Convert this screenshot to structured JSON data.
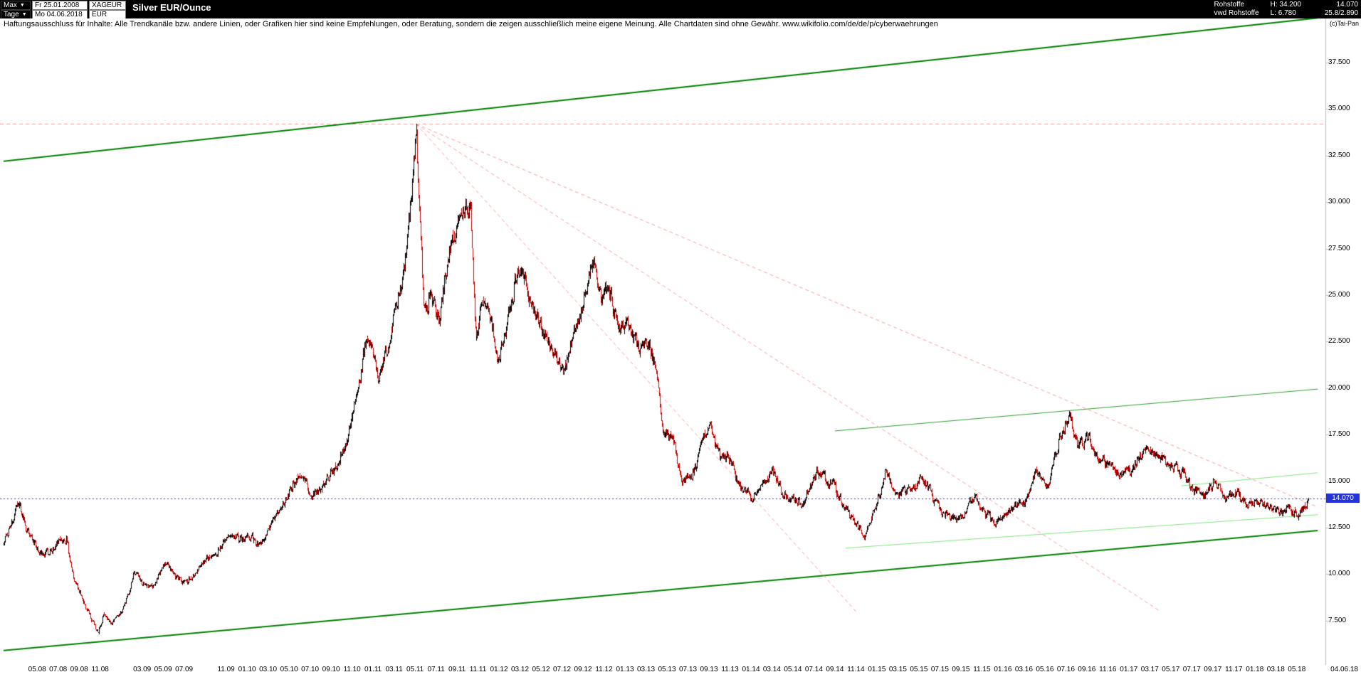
{
  "toolbar": {
    "range_label": "Max",
    "period_label": "Tage",
    "start_date": "Fr 25.01.2008",
    "end_date": "Mo 04.06.2018",
    "symbol": "XAGEUR",
    "currency": "EUR",
    "title": "Silver EUR/Ounce",
    "category": "Rohstoffe",
    "source": "vwd Rohstoffe",
    "high_label": "H: 34.200",
    "low_label": "L: 6.780",
    "last_value": "14.070",
    "change_value": "25.8/2.890"
  },
  "chart": {
    "disclaimer": "Haftungsausschluss für Inhalte: Alle Trendkanäle bzw. andere Linien, oder Grafiken hier sind keine Empfehlungen, oder Beratung, sondern die zeigen ausschließlich meine eigene Meinung. Alle Chartdaten sind ohne Gewähr.  www.wikifolio.com/de/de/p/cyberwaehrungen",
    "copyright": "(c)Tai-Pan",
    "last_price_label": "14.070",
    "colors": {
      "up": "#000000",
      "down": "#cc0000",
      "channel_green": "#008000",
      "mid_green": "#2e9e2e",
      "bright_green": "#7fe57f",
      "pink_dashed": "#ff9e9e",
      "high_line_red": "#ff9e9e",
      "last_line_blue": "#2a2af0",
      "tag_bg": "#2233dd",
      "axis_line": "#bbbbbb"
    }
  },
  "chart_data": {
    "type": "candlestick",
    "title": "Silver EUR/Ounce",
    "x_unit": "months since 2008-01",
    "x_range": [
      0.8,
      125.1
    ],
    "y_range_visible": [
      4.8,
      39.9
    ],
    "high": 34.2,
    "low": 6.78,
    "last": 14.07,
    "y_ticks": [
      "37.500",
      "35.000",
      "32.500",
      "30.000",
      "27.500",
      "25.000",
      "22.500",
      "20.000",
      "17.500",
      "15.000",
      "12.500",
      "10.000",
      "7.500"
    ],
    "x_ticks": [
      "05.08",
      "07.08",
      "09.08",
      "11.08",
      "03.09",
      "05.09",
      "07.09",
      "11.09",
      "01.10",
      "03.10",
      "05.10",
      "07.10",
      "09.10",
      "11.10",
      "01.11",
      "03.11",
      "05.11",
      "07.11",
      "09.11",
      "11.11",
      "01.12",
      "03.12",
      "05.12",
      "07.12",
      "09.12",
      "11.12",
      "01.13",
      "03.13",
      "05.13",
      "07.13",
      "09.13",
      "11.13",
      "01.14",
      "03.14",
      "05.14",
      "07.14",
      "09.14",
      "11.14",
      "01.15",
      "03.15",
      "05.15",
      "07.15",
      "09.15",
      "11.15",
      "01.16",
      "03.16",
      "05.16",
      "07.16",
      "09.16",
      "11.16",
      "01.17",
      "03.17",
      "05.17",
      "07.17",
      "09.17",
      "11.17",
      "01.18",
      "03.18",
      "05.18",
      "04.06.18"
    ],
    "anchors": [
      [
        0.8,
        11.6
      ],
      [
        1.5,
        12.6
      ],
      [
        2.2,
        13.9
      ],
      [
        3.0,
        12.5
      ],
      [
        4.0,
        11.3
      ],
      [
        5.0,
        11.1
      ],
      [
        6.0,
        11.7
      ],
      [
        6.8,
        11.9
      ],
      [
        7.5,
        9.6
      ],
      [
        8.3,
        8.7
      ],
      [
        9.2,
        7.5
      ],
      [
        9.8,
        6.9
      ],
      [
        10.3,
        7.9
      ],
      [
        11.0,
        7.3
      ],
      [
        11.8,
        7.8
      ],
      [
        12.5,
        8.6
      ],
      [
        13.3,
        10.1
      ],
      [
        14.0,
        9.5
      ],
      [
        15.0,
        9.2
      ],
      [
        16.2,
        10.7
      ],
      [
        17.0,
        9.9
      ],
      [
        18.3,
        9.5
      ],
      [
        19.2,
        10.2
      ],
      [
        20.0,
        10.9
      ],
      [
        21.0,
        11.0
      ],
      [
        22.3,
        12.2
      ],
      [
        23.3,
        11.8
      ],
      [
        24.3,
        12.1
      ],
      [
        25.3,
        11.5
      ],
      [
        26.3,
        12.6
      ],
      [
        27.3,
        13.7
      ],
      [
        28.3,
        14.7
      ],
      [
        29.2,
        15.5
      ],
      [
        30.0,
        14.3
      ],
      [
        31.0,
        14.5
      ],
      [
        31.8,
        15.3
      ],
      [
        32.6,
        16.0
      ],
      [
        33.5,
        17.1
      ],
      [
        34.5,
        19.7
      ],
      [
        35.3,
        22.6
      ],
      [
        36.0,
        21.9
      ],
      [
        36.6,
        20.3
      ],
      [
        37.5,
        22.6
      ],
      [
        38.3,
        24.4
      ],
      [
        39.0,
        26.4
      ],
      [
        39.6,
        29.8
      ],
      [
        40.1,
        33.8
      ],
      [
        40.45,
        29.0
      ],
      [
        40.8,
        24.6
      ],
      [
        41.5,
        24.9
      ],
      [
        42.3,
        23.5
      ],
      [
        43.2,
        27.3
      ],
      [
        44.0,
        28.4
      ],
      [
        44.7,
        30.0
      ],
      [
        45.3,
        29.6
      ],
      [
        45.8,
        22.8
      ],
      [
        46.5,
        24.5
      ],
      [
        47.2,
        23.8
      ],
      [
        48.0,
        21.3
      ],
      [
        48.8,
        23.5
      ],
      [
        49.5,
        25.9
      ],
      [
        50.2,
        26.4
      ],
      [
        51.0,
        24.5
      ],
      [
        52.0,
        23.3
      ],
      [
        53.0,
        21.9
      ],
      [
        54.2,
        21.2
      ],
      [
        55.0,
        22.5
      ],
      [
        56.0,
        24.7
      ],
      [
        57.0,
        26.9
      ],
      [
        57.7,
        24.8
      ],
      [
        58.4,
        25.6
      ],
      [
        59.3,
        23.1
      ],
      [
        60.3,
        23.5
      ],
      [
        61.3,
        22.1
      ],
      [
        62.3,
        22.4
      ],
      [
        63.2,
        20.0
      ],
      [
        63.6,
        17.8
      ],
      [
        64.5,
        17.3
      ],
      [
        65.4,
        15.1
      ],
      [
        66.4,
        15.2
      ],
      [
        67.3,
        16.9
      ],
      [
        68.0,
        18.2
      ],
      [
        69.0,
        16.3
      ],
      [
        70.0,
        16.2
      ],
      [
        71.0,
        14.6
      ],
      [
        72.0,
        14.2
      ],
      [
        73.0,
        14.6
      ],
      [
        74.0,
        15.6
      ],
      [
        75.0,
        14.4
      ],
      [
        76.0,
        14.0
      ],
      [
        77.0,
        13.9
      ],
      [
        78.2,
        15.4
      ],
      [
        79.0,
        15.1
      ],
      [
        80.0,
        14.6
      ],
      [
        81.0,
        13.5
      ],
      [
        82.0,
        12.8
      ],
      [
        82.8,
        11.9
      ],
      [
        83.5,
        13.0
      ],
      [
        84.3,
        14.4
      ],
      [
        84.8,
        15.4
      ],
      [
        85.5,
        14.6
      ],
      [
        86.5,
        14.4
      ],
      [
        87.5,
        14.6
      ],
      [
        88.3,
        15.3
      ],
      [
        89.3,
        14.1
      ],
      [
        90.3,
        13.3
      ],
      [
        91.3,
        13.0
      ],
      [
        92.3,
        13.1
      ],
      [
        93.2,
        14.1
      ],
      [
        94.2,
        13.4
      ],
      [
        95.2,
        12.7
      ],
      [
        96.2,
        13.2
      ],
      [
        97.2,
        13.7
      ],
      [
        98.2,
        14.0
      ],
      [
        99.2,
        15.5
      ],
      [
        100.2,
        14.6
      ],
      [
        101.2,
        16.9
      ],
      [
        102.4,
        18.6
      ],
      [
        103.2,
        17.0
      ],
      [
        104.2,
        17.2
      ],
      [
        105.2,
        16.1
      ],
      [
        106.0,
        15.8
      ],
      [
        106.8,
        15.3
      ],
      [
        108.0,
        15.5
      ],
      [
        109.0,
        16.3
      ],
      [
        110.0,
        16.8
      ],
      [
        111.0,
        16.3
      ],
      [
        112.0,
        15.8
      ],
      [
        113.2,
        15.4
      ],
      [
        114.2,
        14.5
      ],
      [
        115.2,
        14.3
      ],
      [
        116.2,
        14.9
      ],
      [
        117.2,
        14.1
      ],
      [
        118.2,
        14.5
      ],
      [
        119.2,
        13.7
      ],
      [
        120.2,
        14.0
      ],
      [
        121.2,
        13.6
      ],
      [
        122.2,
        13.3
      ],
      [
        123.2,
        13.5
      ],
      [
        124.2,
        13.2
      ],
      [
        125.1,
        14.07
      ]
    ],
    "trend_lines": [
      {
        "name": "upper-channel",
        "p1": [
          0.8,
          32.2
        ],
        "p2": [
          126,
          39.9
        ],
        "color_key": "channel_green",
        "width": 2,
        "dash": []
      },
      {
        "name": "lower-channel",
        "p1": [
          0.8,
          5.9
        ],
        "p2": [
          126,
          12.35
        ],
        "color_key": "channel_green",
        "width": 2,
        "dash": []
      },
      {
        "name": "mid-resistance",
        "p1": [
          80,
          17.7
        ],
        "p2": [
          126,
          19.95
        ],
        "color_key": "mid_green",
        "width": 1,
        "dash": []
      },
      {
        "name": "support-2018",
        "p1": [
          81,
          11.4
        ],
        "p2": [
          126,
          13.2
        ],
        "color_key": "bright_green",
        "width": 1,
        "dash": []
      },
      {
        "name": "minor-resistance",
        "p1": [
          113,
          14.75
        ],
        "p2": [
          126,
          15.45
        ],
        "color_key": "bright_green",
        "width": 1,
        "dash": []
      },
      {
        "name": "fan-line-1",
        "p1": [
          40.1,
          34.2
        ],
        "p2": [
          126,
          13.6
        ],
        "color_key": "pink_dashed",
        "width": 1,
        "dash": [
          5,
          4
        ]
      },
      {
        "name": "fan-line-2",
        "p1": [
          40.1,
          34.2
        ],
        "p2": [
          111,
          8.0
        ],
        "color_key": "pink_dashed",
        "width": 1,
        "dash": [
          5,
          4
        ]
      },
      {
        "name": "fan-line-3",
        "p1": [
          40.1,
          34.2
        ],
        "p2": [
          82,
          8.0
        ],
        "color_key": "pink_dashed",
        "width": 1,
        "dash": [
          5,
          4
        ]
      }
    ],
    "h_lines": [
      {
        "name": "high-line",
        "price": 34.2,
        "color_key": "high_line_red",
        "width": 1,
        "dash": [
          5,
          4
        ]
      },
      {
        "name": "last-line",
        "price": 14.07,
        "color_key": "last_line_blue",
        "width": 1,
        "dash": [
          2,
          3
        ]
      }
    ]
  }
}
